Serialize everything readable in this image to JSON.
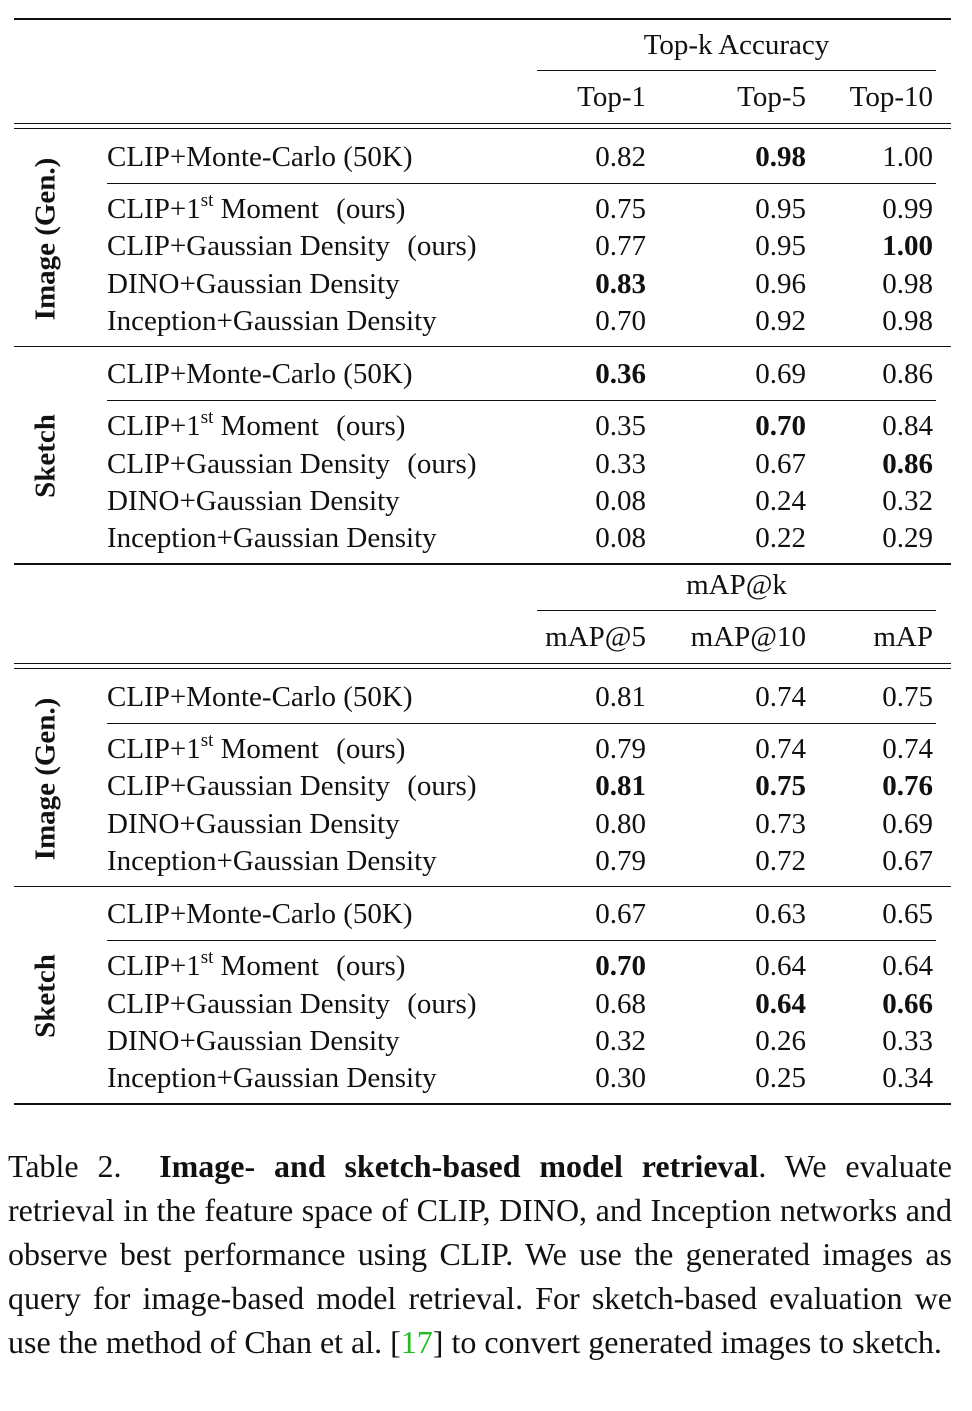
{
  "table": {
    "sections": [
      {
        "group_header": "Top-k Accuracy",
        "columns": [
          "Top-1",
          "Top-5",
          "Top-10"
        ],
        "blocks": [
          {
            "label": "Image (Gen.)",
            "rows": [
              {
                "method": "CLIP+Monte-Carlo (50K)",
                "values": [
                  "0.82",
                  "0.98",
                  "1.00"
                ],
                "bold": [
                  false,
                  true,
                  false
                ]
              },
              {
                "method_pre": "CLIP+1",
                "method_sup": "st",
                "method_post": " Moment",
                "suffix": "(ours)",
                "values": [
                  "0.75",
                  "0.95",
                  "0.99"
                ],
                "bold": [
                  false,
                  false,
                  false
                ]
              },
              {
                "method": "CLIP+Gaussian Density",
                "suffix": "(ours)",
                "values": [
                  "0.77",
                  "0.95",
                  "1.00"
                ],
                "bold": [
                  false,
                  false,
                  true
                ]
              },
              {
                "method": "DINO+Gaussian Density",
                "values": [
                  "0.83",
                  "0.96",
                  "0.98"
                ],
                "bold": [
                  true,
                  false,
                  false
                ]
              },
              {
                "method": "Inception+Gaussian Density",
                "values": [
                  "0.70",
                  "0.92",
                  "0.98"
                ],
                "bold": [
                  false,
                  false,
                  false
                ]
              }
            ]
          },
          {
            "label": "Sketch",
            "rows": [
              {
                "method": "CLIP+Monte-Carlo (50K)",
                "values": [
                  "0.36",
                  "0.69",
                  "0.86"
                ],
                "bold": [
                  true,
                  false,
                  false
                ]
              },
              {
                "method_pre": "CLIP+1",
                "method_sup": "st",
                "method_post": " Moment",
                "suffix": "(ours)",
                "values": [
                  "0.35",
                  "0.70",
                  "0.84"
                ],
                "bold": [
                  false,
                  true,
                  false
                ]
              },
              {
                "method": "CLIP+Gaussian Density",
                "suffix": "(ours)",
                "values": [
                  "0.33",
                  "0.67",
                  "0.86"
                ],
                "bold": [
                  false,
                  false,
                  true
                ]
              },
              {
                "method": "DINO+Gaussian Density",
                "values": [
                  "0.08",
                  "0.24",
                  "0.32"
                ],
                "bold": [
                  false,
                  false,
                  false
                ]
              },
              {
                "method": "Inception+Gaussian Density",
                "values": [
                  "0.08",
                  "0.22",
                  "0.29"
                ],
                "bold": [
                  false,
                  false,
                  false
                ]
              }
            ]
          }
        ]
      },
      {
        "group_header": "mAP@k",
        "columns": [
          "mAP@5",
          "mAP@10",
          "mAP"
        ],
        "blocks": [
          {
            "label": "Image (Gen.)",
            "rows": [
              {
                "method": "CLIP+Monte-Carlo (50K)",
                "values": [
                  "0.81",
                  "0.74",
                  "0.75"
                ],
                "bold": [
                  false,
                  false,
                  false
                ]
              },
              {
                "method_pre": "CLIP+1",
                "method_sup": "st",
                "method_post": " Moment",
                "suffix": "(ours)",
                "values": [
                  "0.79",
                  "0.74",
                  "0.74"
                ],
                "bold": [
                  false,
                  false,
                  false
                ]
              },
              {
                "method": "CLIP+Gaussian Density",
                "suffix": "(ours)",
                "values": [
                  "0.81",
                  "0.75",
                  "0.76"
                ],
                "bold": [
                  true,
                  true,
                  true
                ]
              },
              {
                "method": "DINO+Gaussian Density",
                "values": [
                  "0.80",
                  "0.73",
                  "0.69"
                ],
                "bold": [
                  false,
                  false,
                  false
                ]
              },
              {
                "method": "Inception+Gaussian Density",
                "values": [
                  "0.79",
                  "0.72",
                  "0.67"
                ],
                "bold": [
                  false,
                  false,
                  false
                ]
              }
            ]
          },
          {
            "label": "Sketch",
            "rows": [
              {
                "method": "CLIP+Monte-Carlo (50K)",
                "values": [
                  "0.67",
                  "0.63",
                  "0.65"
                ],
                "bold": [
                  false,
                  false,
                  false
                ]
              },
              {
                "method_pre": "CLIP+1",
                "method_sup": "st",
                "method_post": " Moment",
                "suffix": "(ours)",
                "values": [
                  "0.70",
                  "0.64",
                  "0.64"
                ],
                "bold": [
                  true,
                  false,
                  false
                ]
              },
              {
                "method": "CLIP+Gaussian Density",
                "suffix": "(ours)",
                "values": [
                  "0.68",
                  "0.64",
                  "0.66"
                ],
                "bold": [
                  false,
                  true,
                  true
                ]
              },
              {
                "method": "DINO+Gaussian Density",
                "values": [
                  "0.32",
                  "0.26",
                  "0.33"
                ],
                "bold": [
                  false,
                  false,
                  false
                ]
              },
              {
                "method": "Inception+Gaussian Density",
                "values": [
                  "0.30",
                  "0.25",
                  "0.34"
                ],
                "bold": [
                  false,
                  false,
                  false
                ]
              }
            ]
          }
        ]
      }
    ]
  },
  "caption": {
    "label": "Table 2.",
    "title": "Image- and sketch-based model retrieval",
    "text_1": ". We evaluate retrieval in the feature space of CLIP, DINO, and Inception networks and observe best performance using CLIP. We use the generated images as query for image-based model retrieval. For sketch-based evaluation we use the method of Chan et al. [",
    "ref": "17",
    "text_2": "] to convert generated images to sketch."
  }
}
